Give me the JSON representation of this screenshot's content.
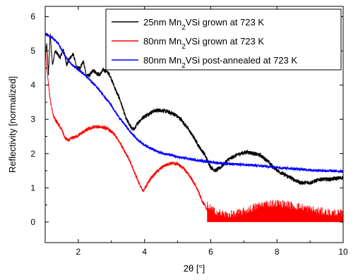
{
  "chart_data": {
    "type": "line",
    "xlabel": "2θ [°]",
    "ylabel": "Reflectivity [normalized]",
    "xlim": [
      1,
      10
    ],
    "ylim": [
      -0.6,
      6.3
    ],
    "xticks": [
      2,
      4,
      6,
      8,
      10
    ],
    "xtick_labels": [
      "2",
      "4",
      "6",
      "8",
      "10"
    ],
    "yticks": [
      0,
      1,
      2,
      3,
      4,
      5,
      6
    ],
    "ytick_labels": [
      "0",
      "1",
      "2",
      "3",
      "4",
      "5",
      "6"
    ],
    "grid": false,
    "legend_position": "top-right",
    "series": [
      {
        "name_parts": [
          "25nm Mn",
          "2",
          "VSi grown at 723 K"
        ],
        "color": "#000000",
        "noise": 0.06,
        "points": [
          [
            1.0,
            4.8
          ],
          [
            1.05,
            5.2
          ],
          [
            1.1,
            4.3
          ],
          [
            1.15,
            5.5
          ],
          [
            1.22,
            4.6
          ],
          [
            1.3,
            5.0
          ],
          [
            1.38,
            4.9
          ],
          [
            1.45,
            4.8
          ],
          [
            1.55,
            5.05
          ],
          [
            1.65,
            4.6
          ],
          [
            1.75,
            4.8
          ],
          [
            1.85,
            4.9
          ],
          [
            1.95,
            4.5
          ],
          [
            2.05,
            4.5
          ],
          [
            2.15,
            4.7
          ],
          [
            2.25,
            4.25
          ],
          [
            2.35,
            4.3
          ],
          [
            2.45,
            4.45
          ],
          [
            2.55,
            4.35
          ],
          [
            2.65,
            4.3
          ],
          [
            2.75,
            4.45
          ],
          [
            2.85,
            4.4
          ],
          [
            2.95,
            4.3
          ],
          [
            3.05,
            4.05
          ],
          [
            3.15,
            3.8
          ],
          [
            3.25,
            3.6
          ],
          [
            3.35,
            3.3
          ],
          [
            3.45,
            3.0
          ],
          [
            3.55,
            2.85
          ],
          [
            3.62,
            2.72
          ],
          [
            3.7,
            2.72
          ],
          [
            3.8,
            2.9
          ],
          [
            3.95,
            3.05
          ],
          [
            4.1,
            3.15
          ],
          [
            4.3,
            3.25
          ],
          [
            4.5,
            3.27
          ],
          [
            4.7,
            3.22
          ],
          [
            4.9,
            3.15
          ],
          [
            5.1,
            3.0
          ],
          [
            5.3,
            2.75
          ],
          [
            5.5,
            2.45
          ],
          [
            5.65,
            2.2
          ],
          [
            5.8,
            2.0
          ],
          [
            5.9,
            1.8
          ],
          [
            6.0,
            1.6
          ],
          [
            6.15,
            1.5
          ],
          [
            6.3,
            1.6
          ],
          [
            6.5,
            1.8
          ],
          [
            6.7,
            1.92
          ],
          [
            6.9,
            2.0
          ],
          [
            7.1,
            2.05
          ],
          [
            7.3,
            2.0
          ],
          [
            7.5,
            1.95
          ],
          [
            7.7,
            1.8
          ],
          [
            7.9,
            1.6
          ],
          [
            8.1,
            1.45
          ],
          [
            8.3,
            1.35
          ],
          [
            8.5,
            1.25
          ],
          [
            8.7,
            1.15
          ],
          [
            9.0,
            1.15
          ],
          [
            9.3,
            1.25
          ],
          [
            9.6,
            1.25
          ],
          [
            10.0,
            1.3
          ]
        ]
      },
      {
        "name_parts": [
          "80nm Mn",
          "2",
          "VSi grown at 723 K"
        ],
        "color": "#ff0000",
        "noise": 0.05,
        "points": [
          [
            1.0,
            5.2
          ],
          [
            1.05,
            4.5
          ],
          [
            1.1,
            4.0
          ],
          [
            1.15,
            3.6
          ],
          [
            1.2,
            3.3
          ],
          [
            1.25,
            3.1
          ],
          [
            1.3,
            3.0
          ],
          [
            1.4,
            2.85
          ],
          [
            1.5,
            2.7
          ],
          [
            1.6,
            2.45
          ],
          [
            1.7,
            2.38
          ],
          [
            1.8,
            2.45
          ],
          [
            1.95,
            2.5
          ],
          [
            2.1,
            2.6
          ],
          [
            2.3,
            2.72
          ],
          [
            2.5,
            2.78
          ],
          [
            2.7,
            2.78
          ],
          [
            2.9,
            2.72
          ],
          [
            3.1,
            2.55
          ],
          [
            3.3,
            2.25
          ],
          [
            3.5,
            1.9
          ],
          [
            3.7,
            1.45
          ],
          [
            3.85,
            1.1
          ],
          [
            3.95,
            0.9
          ],
          [
            4.05,
            1.05
          ],
          [
            4.2,
            1.3
          ],
          [
            4.4,
            1.5
          ],
          [
            4.6,
            1.65
          ],
          [
            4.8,
            1.72
          ],
          [
            5.0,
            1.7
          ],
          [
            5.2,
            1.55
          ],
          [
            5.4,
            1.3
          ],
          [
            5.6,
            0.95
          ],
          [
            5.75,
            0.6
          ],
          [
            5.9,
            0.35
          ],
          [
            6.1,
            0.2
          ],
          [
            6.4,
            0.1
          ],
          [
            6.7,
            0.1
          ],
          [
            7.0,
            0.18
          ],
          [
            7.3,
            0.3
          ],
          [
            7.6,
            0.4
          ],
          [
            7.9,
            0.42
          ],
          [
            8.2,
            0.4
          ],
          [
            8.5,
            0.35
          ],
          [
            8.8,
            0.3
          ],
          [
            9.2,
            0.2
          ],
          [
            9.6,
            0.15
          ],
          [
            10.0,
            0.12
          ]
        ],
        "hatch_from": 5.9,
        "hatch_step": 0.015
      },
      {
        "name_parts": [
          "80nm Mn",
          "2",
          "VSi post-annealed at 723 K"
        ],
        "color": "#0000ff",
        "noise": 0.04,
        "points": [
          [
            1.0,
            5.5
          ],
          [
            1.2,
            5.4
          ],
          [
            1.4,
            5.2
          ],
          [
            1.6,
            4.85
          ],
          [
            1.8,
            4.6
          ],
          [
            2.0,
            4.45
          ],
          [
            2.2,
            4.3
          ],
          [
            2.4,
            4.1
          ],
          [
            2.6,
            3.9
          ],
          [
            2.8,
            3.65
          ],
          [
            3.0,
            3.4
          ],
          [
            3.2,
            3.1
          ],
          [
            3.4,
            2.85
          ],
          [
            3.6,
            2.6
          ],
          [
            3.8,
            2.4
          ],
          [
            4.0,
            2.25
          ],
          [
            4.2,
            2.15
          ],
          [
            4.4,
            2.05
          ],
          [
            4.6,
            2.0
          ],
          [
            4.8,
            1.95
          ],
          [
            5.0,
            1.9
          ],
          [
            5.5,
            1.82
          ],
          [
            6.0,
            1.75
          ],
          [
            6.5,
            1.7
          ],
          [
            7.0,
            1.68
          ],
          [
            7.5,
            1.64
          ],
          [
            8.0,
            1.6
          ],
          [
            8.5,
            1.56
          ],
          [
            9.0,
            1.52
          ],
          [
            9.5,
            1.5
          ],
          [
            10.0,
            1.48
          ]
        ]
      }
    ]
  }
}
